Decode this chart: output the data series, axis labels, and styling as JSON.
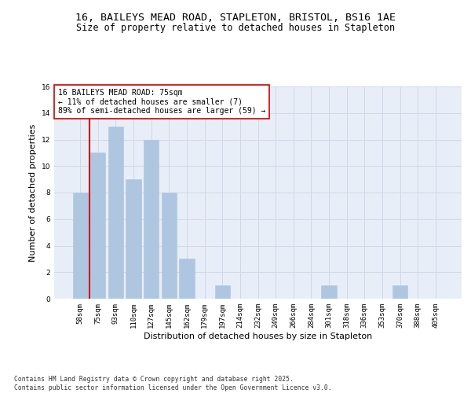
{
  "title1": "16, BAILEYS MEAD ROAD, STAPLETON, BRISTOL, BS16 1AE",
  "title2": "Size of property relative to detached houses in Stapleton",
  "xlabel": "Distribution of detached houses by size in Stapleton",
  "ylabel": "Number of detached properties",
  "categories": [
    "58sqm",
    "75sqm",
    "93sqm",
    "110sqm",
    "127sqm",
    "145sqm",
    "162sqm",
    "179sqm",
    "197sqm",
    "214sqm",
    "232sqm",
    "249sqm",
    "266sqm",
    "284sqm",
    "301sqm",
    "318sqm",
    "336sqm",
    "353sqm",
    "370sqm",
    "388sqm",
    "405sqm"
  ],
  "values": [
    8,
    11,
    13,
    9,
    12,
    8,
    3,
    0,
    1,
    0,
    0,
    0,
    0,
    0,
    1,
    0,
    0,
    0,
    1,
    0,
    0
  ],
  "bar_color": "#aec6e0",
  "bar_edge_color": "#aec6e0",
  "vline_x_index": 1,
  "vline_color": "#cc0000",
  "annotation_text": "16 BAILEYS MEAD ROAD: 75sqm\n← 11% of detached houses are smaller (7)\n89% of semi-detached houses are larger (59) →",
  "annotation_box_color": "white",
  "annotation_box_edge": "#cc0000",
  "ylim": [
    0,
    16
  ],
  "yticks": [
    0,
    2,
    4,
    6,
    8,
    10,
    12,
    14,
    16
  ],
  "grid_color": "#d0d8e8",
  "background_color": "#e8eef8",
  "footer": "Contains HM Land Registry data © Crown copyright and database right 2025.\nContains public sector information licensed under the Open Government Licence v3.0.",
  "title_fontsize": 9.5,
  "subtitle_fontsize": 8.5,
  "tick_fontsize": 6.5,
  "ylabel_fontsize": 8,
  "xlabel_fontsize": 8,
  "annotation_fontsize": 7,
  "footer_fontsize": 5.8
}
